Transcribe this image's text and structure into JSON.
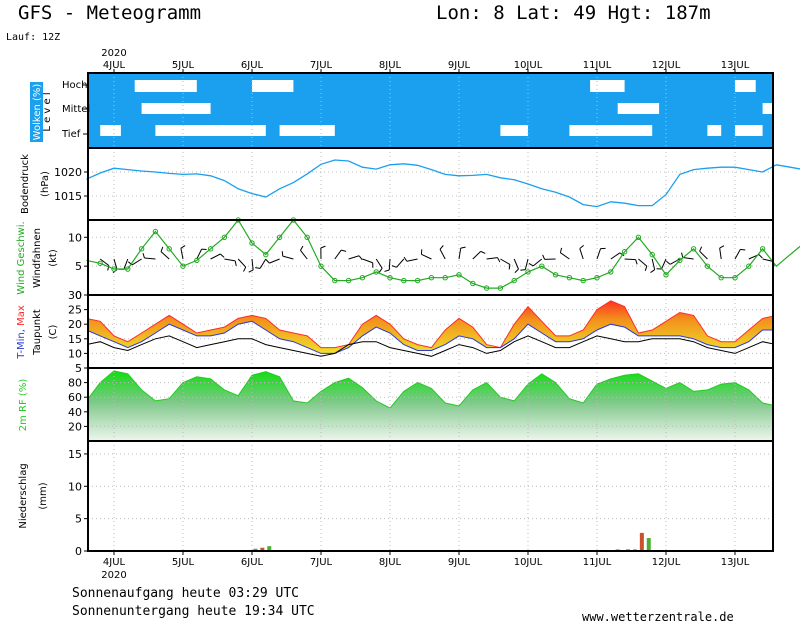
{
  "header": {
    "title": "GFS - Meteogramm",
    "coords": "Lon: 8 Lat: 49 Hgt: 187m",
    "run": "Lauf: 12Z"
  },
  "footer": {
    "sunrise": "Sonnenaufgang heute 03:29 UTC",
    "sunset": "Sonnenuntergang heute 19:34 UTC",
    "website": "www.wetterzentrale.de"
  },
  "colors": {
    "cloud_bg": "#1aa0ee",
    "pressure": "#1aa0ee",
    "wind_speed": "#22aa22",
    "tmax": "#ff2a2a",
    "tmin": "#2a3ad8",
    "dewpoint": "#000000",
    "rh": "#22cc22",
    "precip_green": "#4caf34",
    "precip_red": "#c9522a"
  },
  "chart_data": [
    {
      "type": "heatmap",
      "panel": "clouds",
      "ylabel": "Wolken (%)",
      "yaxis_title": "Level",
      "levels": [
        "Hoch",
        "Mittel",
        "Tief"
      ],
      "x_year": "2020",
      "x_ticks": [
        "4JUL",
        "5JUL",
        "6JUL",
        "7JUL",
        "8JUL",
        "9JUL",
        "10JUL",
        "11JUL",
        "12JUL",
        "13JUL"
      ],
      "clear_patches": [
        {
          "level": "Hoch",
          "start": 0.3,
          "end": 1.2
        },
        {
          "level": "Hoch",
          "start": 2.0,
          "end": 2.6
        },
        {
          "level": "Hoch",
          "start": 6.9,
          "end": 7.4
        },
        {
          "level": "Hoch",
          "start": 9.0,
          "end": 9.3
        },
        {
          "level": "Hoch",
          "start": 9.6,
          "end": 10.0
        },
        {
          "level": "Mittel",
          "start": 0.4,
          "end": 1.4
        },
        {
          "level": "Mittel",
          "start": 7.3,
          "end": 7.9
        },
        {
          "level": "Mittel",
          "start": 9.4,
          "end": 9.7
        },
        {
          "level": "Tief",
          "start": -0.2,
          "end": 0.1
        },
        {
          "level": "Tief",
          "start": 0.6,
          "end": 2.2
        },
        {
          "level": "Tief",
          "start": 2.4,
          "end": 3.2
        },
        {
          "level": "Tief",
          "start": 5.6,
          "end": 6.0
        },
        {
          "level": "Tief",
          "start": 6.6,
          "end": 7.8
        },
        {
          "level": "Tief",
          "start": 8.6,
          "end": 8.8
        },
        {
          "level": "Tief",
          "start": 9.0,
          "end": 9.4
        }
      ]
    },
    {
      "type": "line",
      "panel": "pressure",
      "ylabel": "Bodendruck",
      "unit": "(hPa)",
      "ylim": [
        1010,
        1025
      ],
      "yticks": [
        1015,
        1020
      ],
      "x": [
        -0.4,
        -0.2,
        0,
        0.2,
        0.4,
        0.6,
        0.8,
        1,
        1.2,
        1.4,
        1.6,
        1.8,
        2,
        2.2,
        2.4,
        2.6,
        2.8,
        3,
        3.2,
        3.4,
        3.6,
        3.8,
        4,
        4.2,
        4.4,
        4.6,
        4.8,
        5,
        5.2,
        5.4,
        5.6,
        5.8,
        6,
        6.2,
        6.4,
        6.6,
        6.8,
        7,
        7.2,
        7.4,
        7.6,
        7.8,
        8,
        8.2,
        8.4,
        8.6,
        8.8,
        9,
        9.2,
        9.4,
        9.6,
        9.8,
        10,
        10.2,
        10.4
      ],
      "values": [
        1018.5,
        1019.8,
        1020.8,
        1020.5,
        1020.2,
        1020,
        1019.7,
        1019.5,
        1019.6,
        1019.2,
        1018.2,
        1016.5,
        1015.5,
        1014.8,
        1016.5,
        1017.8,
        1019.6,
        1021.6,
        1022.5,
        1022.3,
        1021,
        1020.6,
        1021.5,
        1021.7,
        1021.4,
        1020.5,
        1019.5,
        1019.2,
        1019.3,
        1019.5,
        1018.8,
        1018.4,
        1017.5,
        1016.5,
        1015.8,
        1014.8,
        1013.2,
        1012.8,
        1013.8,
        1013.5,
        1013,
        1013,
        1015.3,
        1019.5,
        1020.5,
        1020.8,
        1021,
        1021,
        1020.5,
        1020,
        1021.5,
        1021,
        1020.5,
        1020,
        1019
      ]
    },
    {
      "type": "line",
      "panel": "wind",
      "ylabel": "Wind Geschwi.",
      "ylabel2": "Windfahnen",
      "unit": "(kt)",
      "ylim": [
        0,
        13
      ],
      "yticks": [
        0,
        5,
        10
      ],
      "x": [
        -0.4,
        -0.2,
        0,
        0.2,
        0.4,
        0.6,
        0.8,
        1,
        1.2,
        1.4,
        1.6,
        1.8,
        2,
        2.2,
        2.4,
        2.6,
        2.8,
        3,
        3.2,
        3.4,
        3.6,
        3.8,
        4,
        4.2,
        4.4,
        4.6,
        4.8,
        5,
        5.2,
        5.4,
        5.6,
        5.8,
        6,
        6.2,
        6.4,
        6.6,
        6.8,
        7,
        7.2,
        7.4,
        7.6,
        7.8,
        8,
        8.2,
        8.4,
        8.6,
        8.8,
        9,
        9.2,
        9.4,
        9.6,
        9.8,
        10,
        10.2,
        10.4
      ],
      "values": [
        6,
        5.5,
        4.5,
        4.5,
        8,
        11,
        8,
        5,
        6,
        8,
        10,
        13,
        9,
        7,
        10,
        13,
        10,
        5,
        2.5,
        2.5,
        3,
        4,
        3,
        2.5,
        2.5,
        3,
        3,
        3.5,
        2,
        1.2,
        1.2,
        2.5,
        4,
        5,
        3.5,
        3,
        2.5,
        3,
        4,
        7.5,
        10,
        7,
        3.5,
        6,
        8,
        5,
        3,
        3,
        5,
        8,
        5,
        7,
        9,
        9,
        8
      ]
    },
    {
      "type": "area",
      "panel": "temperature",
      "ylabel": "T-Min, Max",
      "ylabel2": "Taupunkt",
      "unit": "(C)",
      "ylim": [
        5,
        30
      ],
      "yticks": [
        5,
        10,
        15,
        20,
        25,
        30
      ],
      "x": [
        -0.4,
        -0.2,
        0,
        0.2,
        0.4,
        0.6,
        0.8,
        1,
        1.2,
        1.4,
        1.6,
        1.8,
        2,
        2.2,
        2.4,
        2.6,
        2.8,
        3,
        3.2,
        3.4,
        3.6,
        3.8,
        4,
        4.2,
        4.4,
        4.6,
        4.8,
        5,
        5.2,
        5.4,
        5.6,
        5.8,
        6,
        6.2,
        6.4,
        6.6,
        6.8,
        7,
        7.2,
        7.4,
        7.6,
        7.8,
        8,
        8.2,
        8.4,
        8.6,
        8.8,
        9,
        9.2,
        9.4,
        9.6,
        9.8,
        10,
        10.2,
        10.4
      ],
      "series": [
        {
          "name": "T-Max",
          "values": [
            22,
            21,
            16,
            14,
            17,
            20,
            23,
            20,
            17,
            18,
            19,
            22,
            23,
            22,
            18,
            17,
            16,
            12,
            12,
            13,
            20,
            23,
            20,
            15,
            13,
            12,
            18,
            22,
            19,
            13,
            12,
            20,
            26,
            21,
            16,
            16,
            18,
            25,
            28,
            26,
            17,
            18,
            21,
            24,
            23,
            16,
            14,
            14,
            18,
            22,
            23,
            19,
            14,
            15,
            21
          ]
        },
        {
          "name": "T-Min",
          "values": [
            18,
            16,
            14,
            12,
            14,
            17,
            20,
            18,
            16,
            16,
            17,
            20,
            21,
            18,
            15,
            14,
            12,
            10,
            10,
            12,
            16,
            19,
            17,
            13,
            11,
            11,
            13,
            16,
            15,
            12,
            12,
            15,
            20,
            17,
            14,
            14,
            15,
            18,
            20,
            19,
            16,
            16,
            16,
            16,
            15,
            13,
            12,
            12,
            14,
            18,
            18,
            15,
            12,
            13,
            16
          ]
        },
        {
          "name": "Taupunkt",
          "values": [
            13,
            14,
            12,
            11,
            13,
            15,
            16,
            14,
            12,
            13,
            14,
            15,
            15,
            13,
            12,
            11,
            10,
            9,
            10,
            13,
            14,
            14,
            12,
            11,
            10,
            9,
            11,
            13,
            12,
            10,
            11,
            14,
            16,
            14,
            12,
            12,
            14,
            16,
            15,
            14,
            14,
            15,
            15,
            15,
            14,
            12,
            11,
            10,
            12,
            14,
            13,
            10,
            9,
            10,
            10
          ]
        }
      ]
    },
    {
      "type": "area",
      "panel": "humidity",
      "ylabel": "2m RF (%)",
      "ylim": [
        0,
        100
      ],
      "yticks": [
        20,
        40,
        60,
        80
      ],
      "x": [
        -0.4,
        -0.2,
        0,
        0.2,
        0.4,
        0.6,
        0.8,
        1,
        1.2,
        1.4,
        1.6,
        1.8,
        2,
        2.2,
        2.4,
        2.6,
        2.8,
        3,
        3.2,
        3.4,
        3.6,
        3.8,
        4,
        4.2,
        4.4,
        4.6,
        4.8,
        5,
        5.2,
        5.4,
        5.6,
        5.8,
        6,
        6.2,
        6.4,
        6.6,
        6.8,
        7,
        7.2,
        7.4,
        7.6,
        7.8,
        8,
        8.2,
        8.4,
        8.6,
        8.8,
        9,
        9.2,
        9.4,
        9.6,
        9.8,
        10,
        10.2,
        10.4
      ],
      "values": [
        55,
        80,
        96,
        92,
        70,
        55,
        58,
        80,
        88,
        85,
        70,
        62,
        90,
        95,
        88,
        55,
        52,
        68,
        80,
        86,
        73,
        55,
        45,
        68,
        80,
        72,
        52,
        48,
        70,
        80,
        60,
        55,
        78,
        92,
        80,
        58,
        52,
        78,
        85,
        90,
        92,
        82,
        72,
        80,
        68,
        70,
        78,
        80,
        70,
        52,
        48,
        70,
        68,
        74,
        58
      ]
    },
    {
      "type": "bar",
      "panel": "precipitation",
      "ylabel": "Niederschlag",
      "unit": "(mm)",
      "ylim": [
        0,
        17
      ],
      "yticks": [
        0,
        5,
        10,
        15
      ],
      "x_year": "2020",
      "x_ticks": [
        "4JUL",
        "5JUL",
        "6JUL",
        "7JUL",
        "8JUL",
        "9JUL",
        "10JUL",
        "11JUL",
        "12JUL",
        "13JUL"
      ],
      "bars": [
        {
          "x": 1.2,
          "value": 0.1,
          "kind": "green"
        },
        {
          "x": 1.55,
          "value": 0.1,
          "kind": "red"
        },
        {
          "x": 2.05,
          "value": 0.35,
          "kind": "green"
        },
        {
          "x": 2.15,
          "value": 0.5,
          "kind": "red"
        },
        {
          "x": 2.25,
          "value": 0.75,
          "kind": "green"
        },
        {
          "x": 6.95,
          "value": 0.1,
          "kind": "red"
        },
        {
          "x": 7.15,
          "value": 0.15,
          "kind": "red"
        },
        {
          "x": 7.3,
          "value": 0.25,
          "kind": "green"
        },
        {
          "x": 7.45,
          "value": 0.25,
          "kind": "red"
        },
        {
          "x": 7.55,
          "value": 0.25,
          "kind": "green"
        },
        {
          "x": 7.65,
          "value": 2.8,
          "kind": "red"
        },
        {
          "x": 7.75,
          "value": 2.0,
          "kind": "green"
        },
        {
          "x": 7.9,
          "value": 0.15,
          "kind": "red"
        }
      ]
    }
  ]
}
